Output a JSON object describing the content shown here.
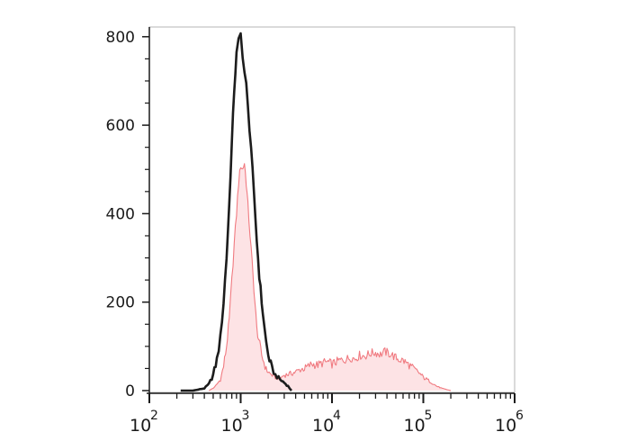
{
  "chart_data": {
    "type": "area",
    "title": "",
    "xlabel": "",
    "ylabel": "",
    "x_scale": "log",
    "xlim": [
      100,
      1000000
    ],
    "ylim": [
      0,
      820
    ],
    "x_ticks": [
      {
        "base": "10",
        "exp": "2",
        "value": 100
      },
      {
        "base": "10",
        "exp": "3",
        "value": 1000
      },
      {
        "base": "10",
        "exp": "4",
        "value": 10000
      },
      {
        "base": "10",
        "exp": "5",
        "value": 100000
      },
      {
        "base": "10",
        "exp": "6",
        "value": 1000000
      }
    ],
    "y_ticks": [
      {
        "label": "0",
        "value": 0
      },
      {
        "label": "200",
        "value": 200
      },
      {
        "label": "400",
        "value": 400
      },
      {
        "label": "600",
        "value": 600
      },
      {
        "label": "800",
        "value": 800
      }
    ],
    "grid": false,
    "legend": "none",
    "series": [
      {
        "style": "filled",
        "color": "#f07a80",
        "fill": "#fde3e5",
        "x": [
          450,
          520,
          600,
          650,
          700,
          750,
          800,
          850,
          900,
          950,
          1000,
          1050,
          1100,
          1150,
          1200,
          1300,
          1400,
          1500,
          1700,
          1900,
          2100,
          2400,
          2700,
          3000,
          3500,
          4000,
          4500,
          5000,
          5500,
          6000,
          7000,
          8000,
          9000,
          10000,
          12000,
          14000,
          16000,
          18000,
          20000,
          23000,
          26000,
          30000,
          34000,
          38000,
          42000,
          46000,
          50000,
          55000,
          60000,
          70000,
          80000,
          90000,
          100000,
          120000,
          140000,
          160000,
          200000
        ],
        "y": [
          0,
          8,
          25,
          55,
          100,
          160,
          250,
          330,
          400,
          470,
          510,
          500,
          515,
          470,
          420,
          320,
          230,
          140,
          80,
          48,
          38,
          30,
          28,
          35,
          38,
          42,
          48,
          50,
          55,
          60,
          58,
          63,
          65,
          60,
          68,
          70,
          75,
          72,
          80,
          78,
          84,
          86,
          82,
          88,
          84,
          80,
          74,
          70,
          68,
          58,
          48,
          40,
          30,
          20,
          10,
          5,
          0
        ]
      },
      {
        "style": "line",
        "color": "#1c1c1c",
        "x": [
          220,
          300,
          400,
          450,
          500,
          550,
          600,
          650,
          700,
          750,
          800,
          850,
          900,
          950,
          1000,
          1050,
          1100,
          1150,
          1200,
          1300,
          1400,
          1500,
          1600,
          1700,
          1800,
          1900,
          2000,
          2200,
          2400,
          2700,
          3000,
          3300,
          3600
        ],
        "y": [
          0,
          0,
          5,
          15,
          35,
          70,
          120,
          200,
          300,
          420,
          560,
          680,
          760,
          790,
          805,
          760,
          720,
          690,
          640,
          550,
          440,
          340,
          260,
          200,
          150,
          110,
          80,
          50,
          35,
          25,
          18,
          10,
          0
        ]
      }
    ]
  }
}
